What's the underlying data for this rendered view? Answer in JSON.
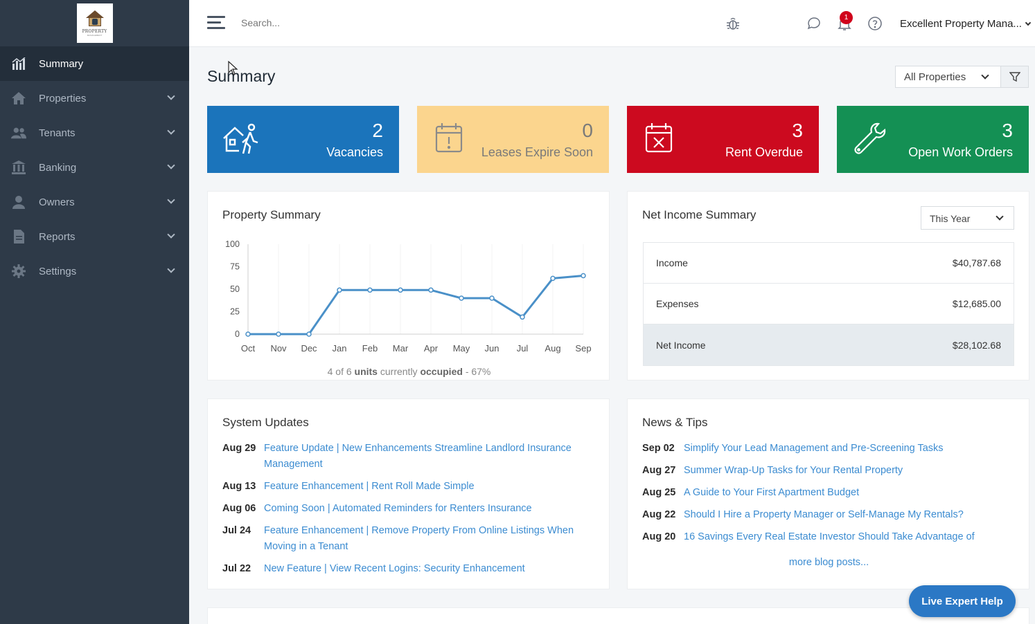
{
  "sidebar": {
    "logo_text": "PROPERTY",
    "logo_sub": "MANAGEMENT",
    "items": [
      {
        "label": "Summary",
        "icon": "bar-chart-icon",
        "active": true
      },
      {
        "label": "Properties",
        "icon": "home-icon"
      },
      {
        "label": "Tenants",
        "icon": "users-icon"
      },
      {
        "label": "Banking",
        "icon": "bank-icon"
      },
      {
        "label": "Owners",
        "icon": "user-icon"
      },
      {
        "label": "Reports",
        "icon": "document-icon"
      },
      {
        "label": "Settings",
        "icon": "gear-icon"
      }
    ]
  },
  "topbar": {
    "search_placeholder": "Search...",
    "notification_count": "1",
    "account_name": "Excellent Property Mana..."
  },
  "page": {
    "title": "Summary",
    "property_filter": "All Properties"
  },
  "stats": [
    {
      "value": "2",
      "label": "Vacancies",
      "color": "#1b74bb",
      "icon": "house-person-icon"
    },
    {
      "value": "0",
      "label": "Leases Expire Soon",
      "color": "#fbd58e",
      "icon": "calendar-alert-icon"
    },
    {
      "value": "3",
      "label": "Rent Overdue",
      "color": "#cc0a1f",
      "icon": "calendar-x-icon"
    },
    {
      "value": "3",
      "label": "Open Work Orders",
      "color": "#149054",
      "icon": "wrench-icon"
    }
  ],
  "property_summary": {
    "title": "Property Summary",
    "occupancy_prefix": "4 of 6",
    "occupancy_units": "units",
    "occupancy_mid": "currently",
    "occupancy_word": "occupied",
    "occupancy_suffix": "- 67%"
  },
  "chart_data": {
    "type": "line",
    "categories": [
      "Oct",
      "Nov",
      "Dec",
      "Jan",
      "Feb",
      "Mar",
      "Apr",
      "May",
      "Jun",
      "Jul",
      "Aug",
      "Sep"
    ],
    "values": [
      0,
      0,
      0,
      49,
      49,
      49,
      49,
      40,
      40,
      19,
      62,
      65
    ],
    "ylim": [
      0,
      100
    ],
    "yticks": [
      0,
      25,
      50,
      75,
      100
    ],
    "color": "#4a90c8",
    "grid": false
  },
  "net_income": {
    "title": "Net Income Summary",
    "period": "This Year",
    "rows": [
      {
        "label": "Income",
        "value": "$40,787.68"
      },
      {
        "label": "Expenses",
        "value": "$12,685.00"
      },
      {
        "label": "Net Income",
        "value": "$28,102.68"
      }
    ]
  },
  "system_updates": {
    "title": "System Updates",
    "items": [
      {
        "date": "Aug 29",
        "text": "Feature Update | New Enhancements Streamline Landlord Insurance Management"
      },
      {
        "date": "Aug 13",
        "text": "Feature Enhancement | Rent Roll Made Simple"
      },
      {
        "date": "Aug 06",
        "text": "Coming Soon | Automated Reminders for Renters Insurance"
      },
      {
        "date": "Jul 24",
        "text": "Feature Enhancement | Remove Property From Online Listings When Moving in a Tenant"
      },
      {
        "date": "Jul 22",
        "text": "New Feature | View Recent Logins: Security Enhancement"
      }
    ]
  },
  "news": {
    "title": "News & Tips",
    "items": [
      {
        "date": "Sep 02",
        "text": "Simplify Your Lead Management and Pre-Screening Tasks"
      },
      {
        "date": "Aug 27",
        "text": "Summer Wrap-Up Tasks for Your Rental Property"
      },
      {
        "date": "Aug 25",
        "text": "A Guide to Your First Apartment Budget"
      },
      {
        "date": "Aug 22",
        "text": "Should I Hire a Property Manager or Self-Manage My Rentals?"
      },
      {
        "date": "Aug 20",
        "text": "16 Savings Every Real Estate Investor Should Take Advantage of"
      }
    ],
    "more_label": "more blog posts..."
  },
  "help": {
    "label": "Live Expert Help"
  }
}
